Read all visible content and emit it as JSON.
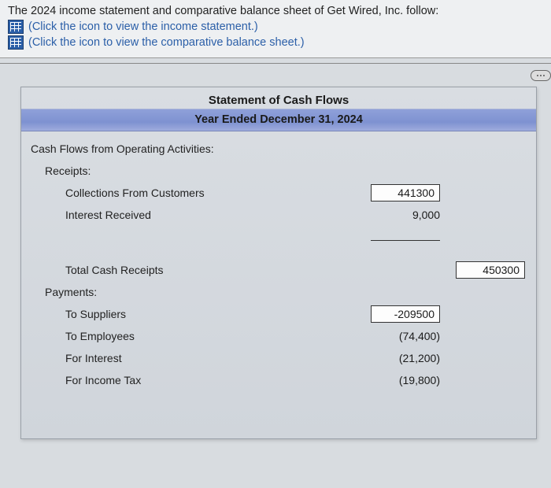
{
  "header": {
    "intro": "The 2024 income statement and comparative balance sheet of Get Wired, Inc. follow:",
    "link1": "(Click the icon to view the income statement.)",
    "link2": "(Click the icon to view the comparative balance sheet.)"
  },
  "statement": {
    "title": "Statement of Cash Flows",
    "subtitle": "Year Ended December 31, 2024",
    "section_operating": "Cash Flows from Operating Activities:",
    "receipts_label": "Receipts:",
    "receipts": {
      "collections": {
        "label": "Collections From Customers",
        "value": "441300"
      },
      "interest": {
        "label": "Interest Received",
        "value": "9,000"
      }
    },
    "total_receipts": {
      "label": "Total Cash Receipts",
      "value": "450300"
    },
    "payments_label": "Payments:",
    "payments": {
      "suppliers": {
        "label": "To Suppliers",
        "value": "-209500"
      },
      "employees": {
        "label": "To Employees",
        "value": "(74,400)"
      },
      "interest": {
        "label": "For Interest",
        "value": "(21,200)"
      },
      "tax": {
        "label": "For Income Tax",
        "value": "(19,800)"
      }
    }
  },
  "colors": {
    "band_bg": "#8fa0d9",
    "panel_bg": "#d5d9df",
    "link": "#2b5fa8",
    "input_border": "#333333"
  }
}
